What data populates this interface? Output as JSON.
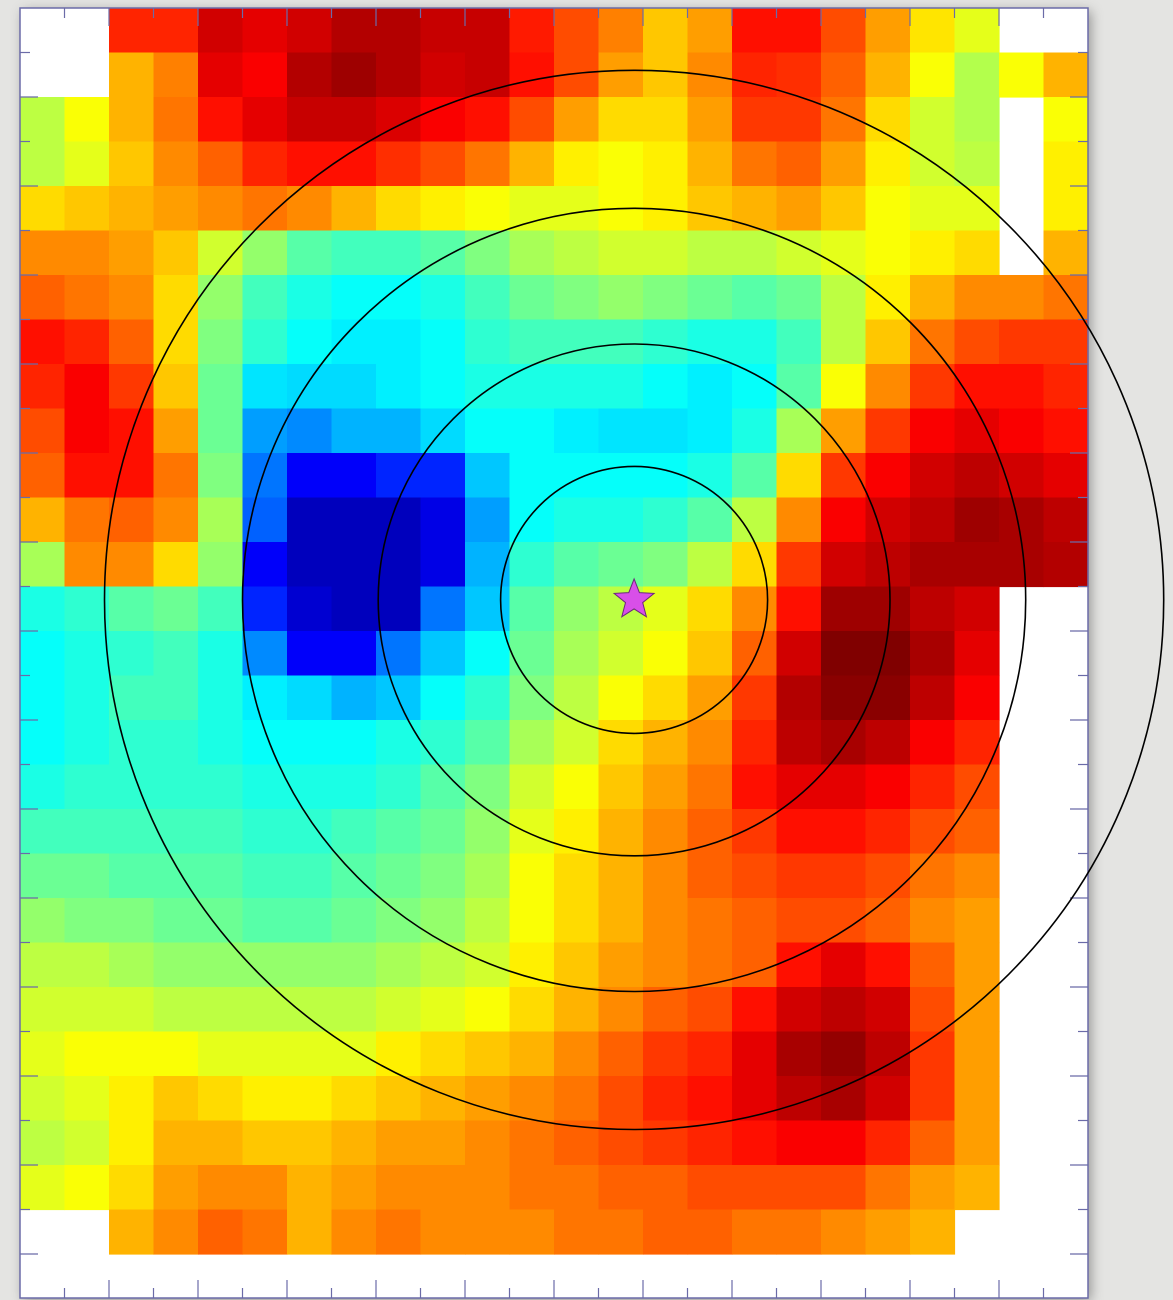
{
  "chart_data": {
    "type": "heatmap",
    "title": "",
    "xlabel": "",
    "ylabel": "",
    "colormap": "jet",
    "value_range": [
      0,
      1
    ],
    "missing_value": null,
    "grid": false,
    "n_cols": 24,
    "n_rows": 28,
    "values": [
      [
        null,
        null,
        0.84,
        0.84,
        0.92,
        0.9,
        0.92,
        0.95,
        0.95,
        0.93,
        0.93,
        0.85,
        0.8,
        0.75,
        0.68,
        0.72,
        0.86,
        0.86,
        0.8,
        0.72,
        0.65,
        0.6,
        null,
        null
      ],
      [
        null,
        null,
        0.7,
        0.75,
        0.9,
        0.88,
        0.95,
        0.97,
        0.95,
        0.92,
        0.93,
        0.86,
        0.8,
        0.72,
        0.68,
        0.74,
        0.84,
        0.83,
        0.78,
        0.7,
        0.62,
        0.55,
        0.62,
        0.7
      ],
      [
        0.56,
        0.62,
        0.7,
        0.76,
        0.86,
        0.9,
        0.93,
        0.93,
        0.91,
        0.88,
        0.86,
        0.8,
        0.72,
        0.66,
        0.66,
        0.72,
        0.82,
        0.82,
        0.76,
        0.66,
        0.58,
        0.55,
        null,
        0.62
      ],
      [
        0.56,
        0.6,
        0.68,
        0.74,
        0.78,
        0.84,
        0.86,
        0.86,
        0.83,
        0.8,
        0.76,
        0.7,
        0.64,
        0.62,
        0.64,
        0.7,
        0.76,
        0.78,
        0.72,
        0.64,
        0.58,
        0.56,
        null,
        0.64
      ],
      [
        0.66,
        0.68,
        0.7,
        0.72,
        0.74,
        0.76,
        0.74,
        0.7,
        0.66,
        0.64,
        0.62,
        0.6,
        0.6,
        0.62,
        0.64,
        0.68,
        0.7,
        0.72,
        0.68,
        0.62,
        0.6,
        0.6,
        null,
        0.64
      ],
      [
        0.74,
        0.74,
        0.72,
        0.68,
        0.58,
        0.52,
        0.46,
        0.44,
        0.44,
        0.46,
        0.5,
        0.54,
        0.56,
        0.58,
        0.58,
        0.56,
        0.56,
        0.58,
        0.6,
        0.62,
        0.64,
        0.66,
        null,
        0.7
      ],
      [
        0.78,
        0.76,
        0.74,
        0.66,
        0.52,
        0.44,
        0.4,
        0.38,
        0.38,
        0.4,
        0.44,
        0.48,
        0.5,
        0.52,
        0.5,
        0.48,
        0.46,
        0.48,
        0.56,
        0.64,
        0.7,
        0.74,
        0.74,
        0.76
      ],
      [
        0.86,
        0.84,
        0.78,
        0.66,
        0.5,
        0.42,
        0.38,
        0.36,
        0.36,
        0.38,
        0.42,
        0.44,
        0.44,
        0.44,
        0.42,
        0.4,
        0.4,
        0.44,
        0.56,
        0.68,
        0.76,
        0.8,
        0.82,
        0.82
      ],
      [
        0.84,
        0.88,
        0.82,
        0.68,
        0.48,
        0.35,
        0.34,
        0.34,
        0.36,
        0.38,
        0.4,
        0.4,
        0.4,
        0.4,
        0.38,
        0.36,
        0.38,
        0.46,
        0.62,
        0.74,
        0.82,
        0.86,
        0.86,
        0.84
      ],
      [
        0.8,
        0.88,
        0.86,
        0.72,
        0.48,
        0.28,
        0.26,
        0.3,
        0.3,
        0.34,
        0.38,
        0.38,
        0.36,
        0.35,
        0.35,
        0.36,
        0.4,
        0.54,
        0.72,
        0.82,
        0.88,
        0.9,
        0.88,
        0.86
      ],
      [
        0.78,
        0.86,
        0.86,
        0.76,
        0.5,
        0.24,
        0.12,
        0.12,
        0.16,
        0.16,
        0.32,
        0.38,
        0.38,
        0.38,
        0.38,
        0.4,
        0.46,
        0.66,
        0.82,
        0.88,
        0.92,
        0.94,
        0.92,
        0.9
      ],
      [
        0.7,
        0.76,
        0.78,
        0.74,
        0.54,
        0.22,
        0.06,
        0.06,
        0.06,
        0.1,
        0.28,
        0.38,
        0.4,
        0.4,
        0.42,
        0.46,
        0.56,
        0.74,
        0.88,
        0.92,
        0.94,
        0.97,
        0.96,
        0.94
      ],
      [
        0.54,
        0.74,
        0.74,
        0.66,
        0.52,
        0.12,
        0.06,
        0.06,
        0.06,
        0.1,
        0.3,
        0.42,
        0.46,
        0.48,
        0.5,
        0.56,
        0.66,
        0.82,
        0.92,
        0.94,
        0.96,
        0.96,
        0.96,
        0.95
      ],
      [
        0.4,
        0.42,
        0.46,
        0.48,
        0.44,
        0.16,
        0.08,
        0.06,
        0.06,
        0.24,
        0.32,
        0.46,
        0.52,
        0.56,
        0.6,
        0.66,
        0.74,
        0.86,
        0.97,
        0.97,
        0.94,
        0.92,
        null,
        null
      ],
      [
        0.38,
        0.4,
        0.42,
        0.44,
        0.4,
        0.26,
        0.12,
        0.12,
        0.24,
        0.32,
        0.38,
        0.48,
        0.54,
        0.58,
        0.62,
        0.68,
        0.78,
        0.92,
        1.0,
        1.0,
        0.96,
        0.9,
        null,
        null
      ],
      [
        0.38,
        0.4,
        0.44,
        0.44,
        0.4,
        0.36,
        0.34,
        0.3,
        0.32,
        0.38,
        0.42,
        0.5,
        0.56,
        0.62,
        0.66,
        0.72,
        0.82,
        0.95,
        0.99,
        0.99,
        0.94,
        0.88,
        null,
        null
      ],
      [
        0.38,
        0.4,
        0.42,
        0.42,
        0.4,
        0.38,
        0.38,
        0.38,
        0.4,
        0.42,
        0.46,
        0.54,
        0.58,
        0.66,
        0.7,
        0.74,
        0.84,
        0.94,
        0.96,
        0.94,
        0.88,
        0.84,
        null,
        null
      ],
      [
        0.4,
        0.42,
        0.42,
        0.42,
        0.42,
        0.4,
        0.4,
        0.4,
        0.42,
        0.46,
        0.5,
        0.58,
        0.62,
        0.68,
        0.72,
        0.76,
        0.86,
        0.9,
        0.9,
        0.88,
        0.84,
        0.8,
        null,
        null
      ],
      [
        0.44,
        0.44,
        0.44,
        0.44,
        0.44,
        0.42,
        0.42,
        0.44,
        0.46,
        0.48,
        0.52,
        0.6,
        0.64,
        0.7,
        0.74,
        0.78,
        0.82,
        0.86,
        0.86,
        0.84,
        0.8,
        0.78,
        null,
        null
      ],
      [
        0.48,
        0.48,
        0.46,
        0.46,
        0.46,
        0.44,
        0.44,
        0.46,
        0.48,
        0.5,
        0.54,
        0.62,
        0.66,
        0.7,
        0.74,
        0.78,
        0.8,
        0.82,
        0.82,
        0.8,
        0.76,
        0.74,
        null,
        null
      ],
      [
        0.52,
        0.5,
        0.5,
        0.48,
        0.48,
        0.46,
        0.46,
        0.48,
        0.5,
        0.52,
        0.56,
        0.62,
        0.66,
        0.7,
        0.74,
        0.76,
        0.78,
        0.8,
        0.8,
        0.78,
        0.74,
        0.72,
        null,
        null
      ],
      [
        0.56,
        0.56,
        0.54,
        0.52,
        0.52,
        0.52,
        0.52,
        0.52,
        0.54,
        0.56,
        0.58,
        0.64,
        0.68,
        0.72,
        0.74,
        0.76,
        0.78,
        0.86,
        0.9,
        0.86,
        0.78,
        0.72,
        null,
        null
      ],
      [
        0.58,
        0.58,
        0.58,
        0.56,
        0.56,
        0.56,
        0.56,
        0.56,
        0.58,
        0.6,
        0.62,
        0.66,
        0.7,
        0.74,
        0.78,
        0.8,
        0.86,
        0.92,
        0.94,
        0.92,
        0.8,
        0.72,
        null,
        null
      ],
      [
        0.6,
        0.62,
        0.62,
        0.62,
        0.6,
        0.6,
        0.6,
        0.6,
        0.64,
        0.66,
        0.68,
        0.7,
        0.74,
        0.78,
        0.82,
        0.84,
        0.9,
        0.96,
        0.98,
        0.94,
        0.82,
        0.72,
        null,
        null
      ],
      [
        0.58,
        0.6,
        0.64,
        0.68,
        0.66,
        0.64,
        0.64,
        0.66,
        0.68,
        0.7,
        0.72,
        0.74,
        0.76,
        0.8,
        0.84,
        0.86,
        0.9,
        0.94,
        0.96,
        0.92,
        0.82,
        0.72,
        null,
        null
      ],
      [
        0.56,
        0.58,
        0.64,
        0.7,
        0.7,
        0.68,
        0.68,
        0.7,
        0.72,
        0.72,
        0.74,
        0.76,
        0.78,
        0.8,
        0.82,
        0.84,
        0.86,
        0.88,
        0.88,
        0.84,
        0.78,
        0.72,
        null,
        null
      ],
      [
        0.6,
        0.62,
        0.66,
        0.72,
        0.74,
        0.74,
        0.7,
        0.72,
        0.74,
        0.74,
        0.74,
        0.76,
        0.76,
        0.78,
        0.78,
        0.8,
        0.8,
        0.8,
        0.8,
        0.76,
        0.72,
        0.7,
        null,
        null
      ],
      [
        null,
        null,
        0.7,
        0.74,
        0.78,
        0.76,
        0.7,
        0.74,
        0.76,
        0.74,
        0.74,
        0.74,
        0.76,
        0.76,
        0.78,
        0.78,
        0.76,
        0.76,
        0.74,
        0.72,
        0.7,
        null,
        null,
        null
      ]
    ],
    "annotations": {
      "center_marker": {
        "shape": "star",
        "color": "#d84fe8",
        "col": 13.8,
        "row": 13.3
      },
      "circle_color": "#000000",
      "circle_radii_cells": [
        3.0,
        5.75,
        8.8,
        11.9
      ]
    }
  }
}
